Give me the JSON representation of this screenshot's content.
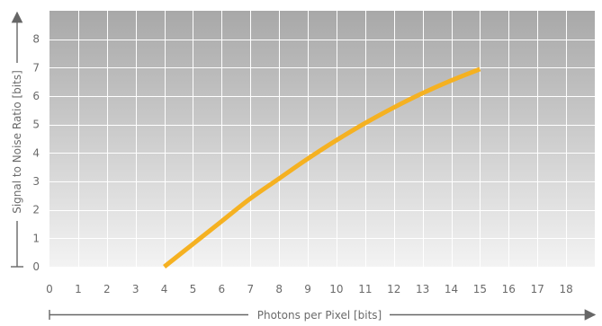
{
  "chart_data": {
    "type": "line",
    "xlabel": "Photons per Pixel [bits]",
    "ylabel": "Signal to Noise Ratio [bits]",
    "xlim": [
      0,
      19
    ],
    "ylim": [
      0,
      9
    ],
    "x_ticks": [
      "0",
      "1",
      "2",
      "3",
      "4",
      "5",
      "6",
      "7",
      "8",
      "9",
      "10",
      "11",
      "12",
      "13",
      "14",
      "15",
      "16",
      "17",
      "18"
    ],
    "y_ticks": [
      "0",
      "1",
      "2",
      "3",
      "4",
      "5",
      "6",
      "7",
      "8"
    ],
    "grid": true,
    "series": [
      {
        "color": "#f5b121",
        "x": [
          4,
          5,
          6,
          7,
          8,
          9,
          10,
          11,
          12,
          13,
          14,
          15
        ],
        "y": [
          0.0,
          0.8,
          1.6,
          2.4,
          3.1,
          3.8,
          4.45,
          5.05,
          5.6,
          6.1,
          6.55,
          6.95
        ]
      }
    ],
    "colors": {
      "plot_bg_top": "#a8a8a8",
      "plot_bg_bottom": "#f3f3f3",
      "grid": "#ffffff",
      "text": "#6a6a6a",
      "axis": "#666666"
    }
  }
}
